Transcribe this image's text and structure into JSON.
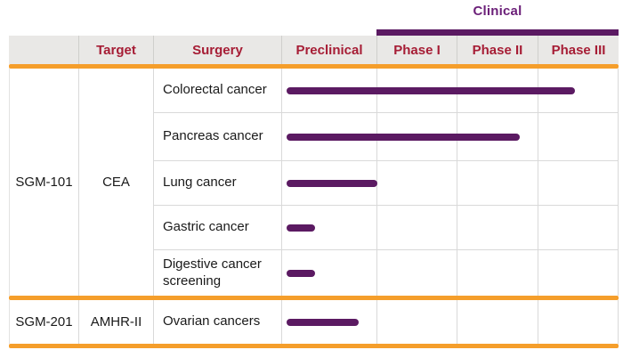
{
  "colors": {
    "purple": "#5B1A62",
    "purple-text": "#6B1F78",
    "red": "#A61D35",
    "orange": "#F59E2B",
    "header-bg": "#E9E8E6",
    "grid": "#D9D9D9",
    "text": "#1A1A1A"
  },
  "ui": {
    "clinical_label": "Clinical",
    "header": {
      "columns": [
        "",
        "Target",
        "Surgery",
        "Preclinical",
        "Phase I",
        "Phase II",
        "Phase III"
      ]
    }
  },
  "chart_data": {
    "type": "bar",
    "title": "Clinical",
    "orientation": "horizontal",
    "stage_axis": [
      "Preclinical",
      "Phase I",
      "Phase II",
      "Phase III"
    ],
    "value_scale": "stage units: 0 = start of Preclinical, 1 = end of Preclinical, 2 = end of Phase I, 3 = end of Phase II, 4 = end of Phase III",
    "xlim": [
      0,
      4
    ],
    "grid": true,
    "rows": [
      {
        "product": "SGM-101",
        "target": "CEA",
        "indication": "Colorectal cancer",
        "progress": 3.45,
        "current_stage": "Phase III"
      },
      {
        "product": "SGM-101",
        "target": "CEA",
        "indication": "Pancreas cancer",
        "progress": 2.77,
        "current_stage": "Phase II"
      },
      {
        "product": "SGM-101",
        "target": "CEA",
        "indication": "Lung cancer",
        "progress": 1.0,
        "current_stage": "Preclinical"
      },
      {
        "product": "SGM-101",
        "target": "CEA",
        "indication": "Gastric cancer",
        "progress": 0.35,
        "current_stage": "Preclinical"
      },
      {
        "product": "SGM-101",
        "target": "CEA",
        "indication": "Digestive cancer screening",
        "progress": 0.35,
        "current_stage": "Preclinical"
      },
      {
        "product": "SGM-201",
        "target": "AMHR-II",
        "indication": "Ovarian cancers",
        "progress": 0.8,
        "current_stage": "Preclinical"
      }
    ],
    "groups": [
      {
        "product": "SGM-101",
        "target": "CEA",
        "row_indices": [
          0,
          1,
          2,
          3,
          4
        ]
      },
      {
        "product": "SGM-201",
        "target": "AMHR-II",
        "row_indices": [
          5
        ]
      }
    ]
  }
}
